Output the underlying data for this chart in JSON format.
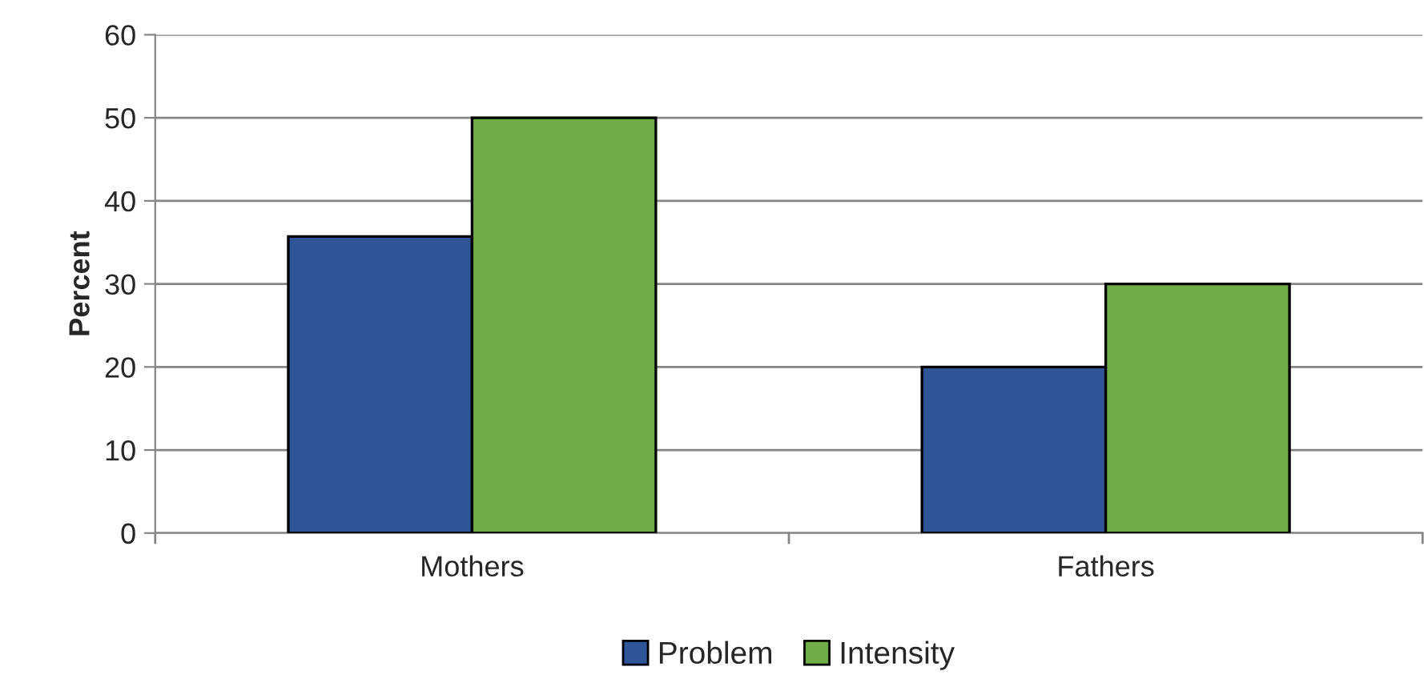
{
  "chart_data": {
    "type": "bar",
    "ylabel": "Percent",
    "categories": [
      "Mothers",
      "Fathers"
    ],
    "series": [
      {
        "name": "Problem",
        "color": "#2f5597",
        "values": [
          35.7,
          20
        ]
      },
      {
        "name": "Intensity",
        "color": "#70ad47",
        "values": [
          50,
          30
        ]
      }
    ],
    "ylim": [
      0,
      60
    ],
    "yticks": [
      0,
      10,
      20,
      30,
      40,
      50,
      60
    ],
    "grid": "y",
    "legend": "bottom"
  }
}
